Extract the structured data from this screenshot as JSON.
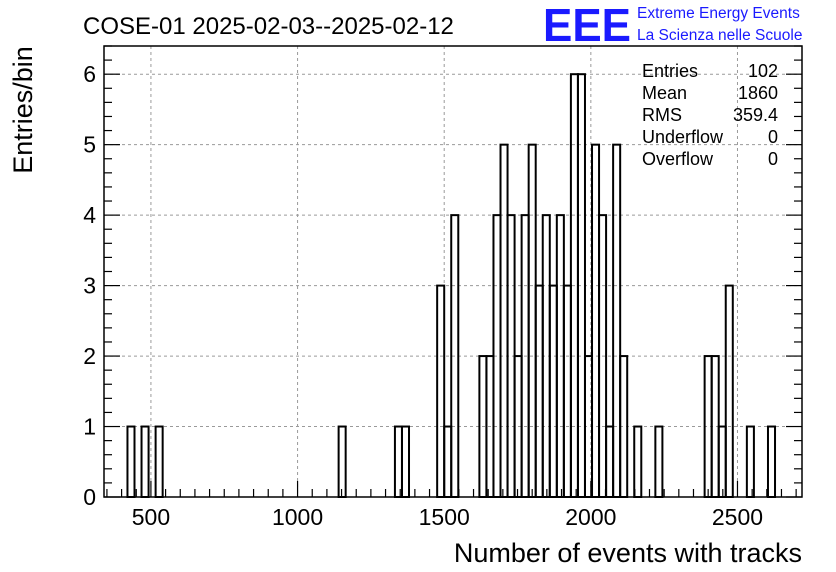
{
  "chart_data": {
    "type": "bar",
    "title": "COSE-01 2025-02-03--2025-02-12",
    "xlabel": "Number of events with tracks",
    "ylabel": "Entries/bin",
    "xlim": [
      340,
      2720
    ],
    "ylim": [
      0,
      6.4
    ],
    "xticks": [
      500,
      1000,
      1500,
      2000,
      2500
    ],
    "yticks": [
      0,
      1,
      2,
      3,
      4,
      5,
      6
    ],
    "grid": true,
    "bin_width": 24,
    "bins": [
      {
        "start": 420,
        "count": 1
      },
      {
        "start": 444,
        "count": 0
      },
      {
        "start": 468,
        "count": 1
      },
      {
        "start": 492,
        "count": 0
      },
      {
        "start": 516,
        "count": 1
      },
      {
        "start": 1140,
        "count": 1
      },
      {
        "start": 1332,
        "count": 1
      },
      {
        "start": 1356,
        "count": 1
      },
      {
        "start": 1476,
        "count": 3
      },
      {
        "start": 1500,
        "count": 1
      },
      {
        "start": 1524,
        "count": 4
      },
      {
        "start": 1548,
        "count": 0
      },
      {
        "start": 1572,
        "count": 0
      },
      {
        "start": 1596,
        "count": 0
      },
      {
        "start": 1620,
        "count": 2
      },
      {
        "start": 1644,
        "count": 2
      },
      {
        "start": 1668,
        "count": 4
      },
      {
        "start": 1692,
        "count": 5
      },
      {
        "start": 1716,
        "count": 4
      },
      {
        "start": 1740,
        "count": 2
      },
      {
        "start": 1764,
        "count": 4
      },
      {
        "start": 1788,
        "count": 5
      },
      {
        "start": 1812,
        "count": 3
      },
      {
        "start": 1836,
        "count": 4
      },
      {
        "start": 1860,
        "count": 3
      },
      {
        "start": 1884,
        "count": 4
      },
      {
        "start": 1908,
        "count": 3
      },
      {
        "start": 1932,
        "count": 6
      },
      {
        "start": 1956,
        "count": 6
      },
      {
        "start": 1980,
        "count": 2
      },
      {
        "start": 2004,
        "count": 5
      },
      {
        "start": 2028,
        "count": 4
      },
      {
        "start": 2052,
        "count": 1
      },
      {
        "start": 2076,
        "count": 5
      },
      {
        "start": 2100,
        "count": 2
      },
      {
        "start": 2124,
        "count": 0
      },
      {
        "start": 2148,
        "count": 1
      },
      {
        "start": 2172,
        "count": 0
      },
      {
        "start": 2196,
        "count": 0
      },
      {
        "start": 2220,
        "count": 1
      },
      {
        "start": 2388,
        "count": 2
      },
      {
        "start": 2412,
        "count": 2
      },
      {
        "start": 2436,
        "count": 1
      },
      {
        "start": 2460,
        "count": 3
      },
      {
        "start": 2484,
        "count": 0
      },
      {
        "start": 2508,
        "count": 0
      },
      {
        "start": 2532,
        "count": 1
      },
      {
        "start": 2556,
        "count": 0
      },
      {
        "start": 2580,
        "count": 0
      },
      {
        "start": 2604,
        "count": 1
      }
    ],
    "stats": [
      {
        "label": "Entries",
        "value": "102"
      },
      {
        "label": "Mean",
        "value": "1860"
      },
      {
        "label": "RMS",
        "value": "359.4"
      },
      {
        "label": "Underflow",
        "value": "0"
      },
      {
        "label": "Overflow",
        "value": "0"
      }
    ],
    "stats_placement": "top-right"
  },
  "logo": {
    "mark": "EEE",
    "line1": "Extreme Energy Events",
    "line2": "La Scienza nelle Scuole",
    "color": "#1a1aff"
  }
}
